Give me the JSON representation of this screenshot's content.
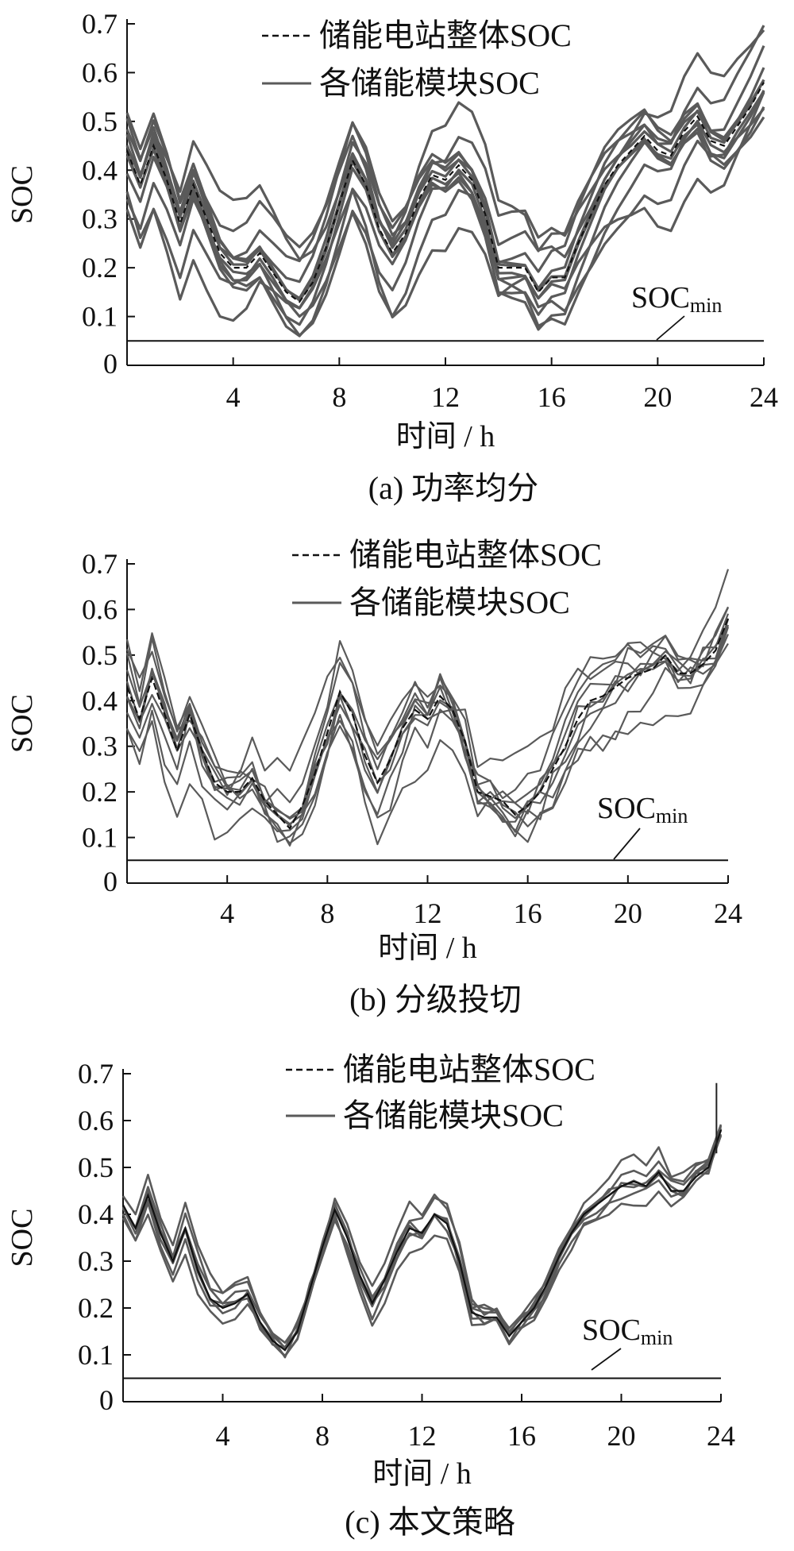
{
  "chart_data": [
    {
      "type": "line",
      "caption": "(a)  功率均分",
      "xlabel": "时间 / h",
      "ylabel": "SOC",
      "xlim": [
        0,
        24
      ],
      "ylim": [
        0,
        0.7
      ],
      "xticks": [
        4,
        8,
        12,
        16,
        20,
        24
      ],
      "yticks": [
        0,
        0.1,
        0.2,
        0.3,
        0.4,
        0.5,
        0.6,
        0.7
      ],
      "ytick_labels": [
        "0",
        "0.1",
        "0.2",
        "0.3",
        "0.4",
        "0.5",
        "0.6",
        "0.7"
      ],
      "legend": {
        "position": "top-center",
        "entries": [
          {
            "label": "储能电站整体SOC",
            "style": "dashed"
          },
          {
            "label": "各储能模块SOC",
            "style": "solid"
          }
        ]
      },
      "soc_min": {
        "value": 0.05,
        "label": "SOC",
        "subscript": "min"
      },
      "grid": false,
      "series": [
        {
          "kind": "overall",
          "x": [
            0,
            0.5,
            1,
            1.5,
            2,
            2.5,
            3,
            3.5,
            4,
            4.5,
            5,
            5.5,
            6,
            6.5,
            7,
            7.5,
            8,
            8.5,
            9,
            9.5,
            10,
            10.5,
            11,
            11.5,
            12,
            12.5,
            13,
            13.5,
            14,
            14.5,
            15,
            15.5,
            16,
            16.5,
            17,
            17.5,
            18,
            18.5,
            19,
            19.5,
            20,
            20.5,
            21,
            21.5,
            22,
            22.5,
            23,
            23.5,
            24
          ],
          "y": [
            0.44,
            0.37,
            0.45,
            0.38,
            0.29,
            0.37,
            0.3,
            0.23,
            0.2,
            0.2,
            0.23,
            0.19,
            0.15,
            0.13,
            0.17,
            0.24,
            0.33,
            0.42,
            0.37,
            0.28,
            0.23,
            0.27,
            0.34,
            0.39,
            0.38,
            0.41,
            0.38,
            0.31,
            0.2,
            0.2,
            0.2,
            0.15,
            0.18,
            0.18,
            0.25,
            0.31,
            0.37,
            0.41,
            0.44,
            0.47,
            0.44,
            0.43,
            0.48,
            0.51,
            0.46,
            0.45,
            0.49,
            0.53,
            0.58
          ]
        }
      ]
    },
    {
      "type": "line",
      "caption": "(b)  分级投切",
      "xlabel": "时间 / h",
      "ylabel": "SOC",
      "xlim": [
        0,
        24
      ],
      "ylim": [
        0,
        0.7
      ],
      "xticks": [
        4,
        8,
        12,
        16,
        20,
        24
      ],
      "yticks": [
        0,
        0.1,
        0.2,
        0.3,
        0.4,
        0.5,
        0.6,
        0.7
      ],
      "ytick_labels": [
        "0",
        "0.1",
        "0.2",
        "0.3",
        "0.4",
        "0.5",
        "0.6",
        "0.7"
      ],
      "legend": {
        "position": "top-center",
        "entries": [
          {
            "label": "储能电站整体SOC",
            "style": "dashed"
          },
          {
            "label": "各储能模块SOC",
            "style": "solid"
          }
        ]
      },
      "soc_min": {
        "value": 0.05,
        "label": "SOC",
        "subscript": "min"
      },
      "grid": false,
      "series": [
        {
          "kind": "overall",
          "x": [
            0,
            0.5,
            1,
            1.5,
            2,
            2.5,
            3,
            3.5,
            4,
            4.5,
            5,
            5.5,
            6,
            6.5,
            7,
            7.5,
            8,
            8.5,
            9,
            9.5,
            10,
            10.5,
            11,
            11.5,
            12,
            12.5,
            13,
            13.5,
            14,
            14.5,
            15,
            15.5,
            16,
            16.5,
            17,
            17.5,
            18,
            18.5,
            19,
            19.5,
            20,
            20.5,
            21,
            21.5,
            22,
            22.5,
            23,
            23.5,
            24
          ],
          "y": [
            0.43,
            0.36,
            0.45,
            0.37,
            0.29,
            0.37,
            0.29,
            0.22,
            0.2,
            0.2,
            0.23,
            0.18,
            0.15,
            0.12,
            0.17,
            0.24,
            0.33,
            0.42,
            0.37,
            0.28,
            0.22,
            0.27,
            0.34,
            0.38,
            0.36,
            0.41,
            0.38,
            0.31,
            0.2,
            0.19,
            0.18,
            0.15,
            0.17,
            0.2,
            0.25,
            0.3,
            0.36,
            0.4,
            0.41,
            0.43,
            0.45,
            0.46,
            0.47,
            0.5,
            0.46,
            0.46,
            0.48,
            0.51,
            0.58
          ]
        }
      ]
    },
    {
      "type": "line",
      "caption": "(c)  本文策略",
      "xlabel": "时间 / h",
      "ylabel": "SOC",
      "xlim": [
        0,
        24
      ],
      "ylim": [
        0,
        0.7
      ],
      "xticks": [
        4,
        8,
        12,
        16,
        20,
        24
      ],
      "yticks": [
        0,
        0.1,
        0.2,
        0.3,
        0.4,
        0.5,
        0.6,
        0.7
      ],
      "ytick_labels": [
        "0",
        "0.1",
        "0.2",
        "0.3",
        "0.4",
        "0.5",
        "0.6",
        "0.7"
      ],
      "legend": {
        "position": "top-center",
        "entries": [
          {
            "label": "储能电站整体SOC",
            "style": "dashed"
          },
          {
            "label": "各储能模块SOC",
            "style": "solid"
          }
        ]
      },
      "soc_min": {
        "value": 0.05,
        "label": "SOC",
        "subscript": "min"
      },
      "grid": false,
      "series": [
        {
          "kind": "overall",
          "x": [
            0,
            0.5,
            1,
            1.5,
            2,
            2.5,
            3,
            3.5,
            4,
            4.5,
            5,
            5.5,
            6,
            6.5,
            7,
            7.5,
            8,
            8.5,
            9,
            9.5,
            10,
            10.5,
            11,
            11.5,
            12,
            12.5,
            13,
            13.5,
            14,
            14.5,
            15,
            15.5,
            16,
            16.5,
            17,
            17.5,
            18,
            18.5,
            19,
            19.5,
            20,
            20.5,
            21,
            21.5,
            22,
            22.5,
            23,
            23.5,
            24
          ],
          "y": [
            0.42,
            0.37,
            0.44,
            0.36,
            0.3,
            0.37,
            0.28,
            0.22,
            0.2,
            0.21,
            0.23,
            0.17,
            0.13,
            0.11,
            0.15,
            0.24,
            0.33,
            0.41,
            0.35,
            0.27,
            0.21,
            0.26,
            0.32,
            0.37,
            0.36,
            0.4,
            0.38,
            0.3,
            0.19,
            0.18,
            0.18,
            0.14,
            0.17,
            0.2,
            0.25,
            0.31,
            0.36,
            0.4,
            0.42,
            0.44,
            0.46,
            0.47,
            0.46,
            0.49,
            0.45,
            0.45,
            0.48,
            0.5,
            0.58
          ]
        }
      ]
    }
  ]
}
